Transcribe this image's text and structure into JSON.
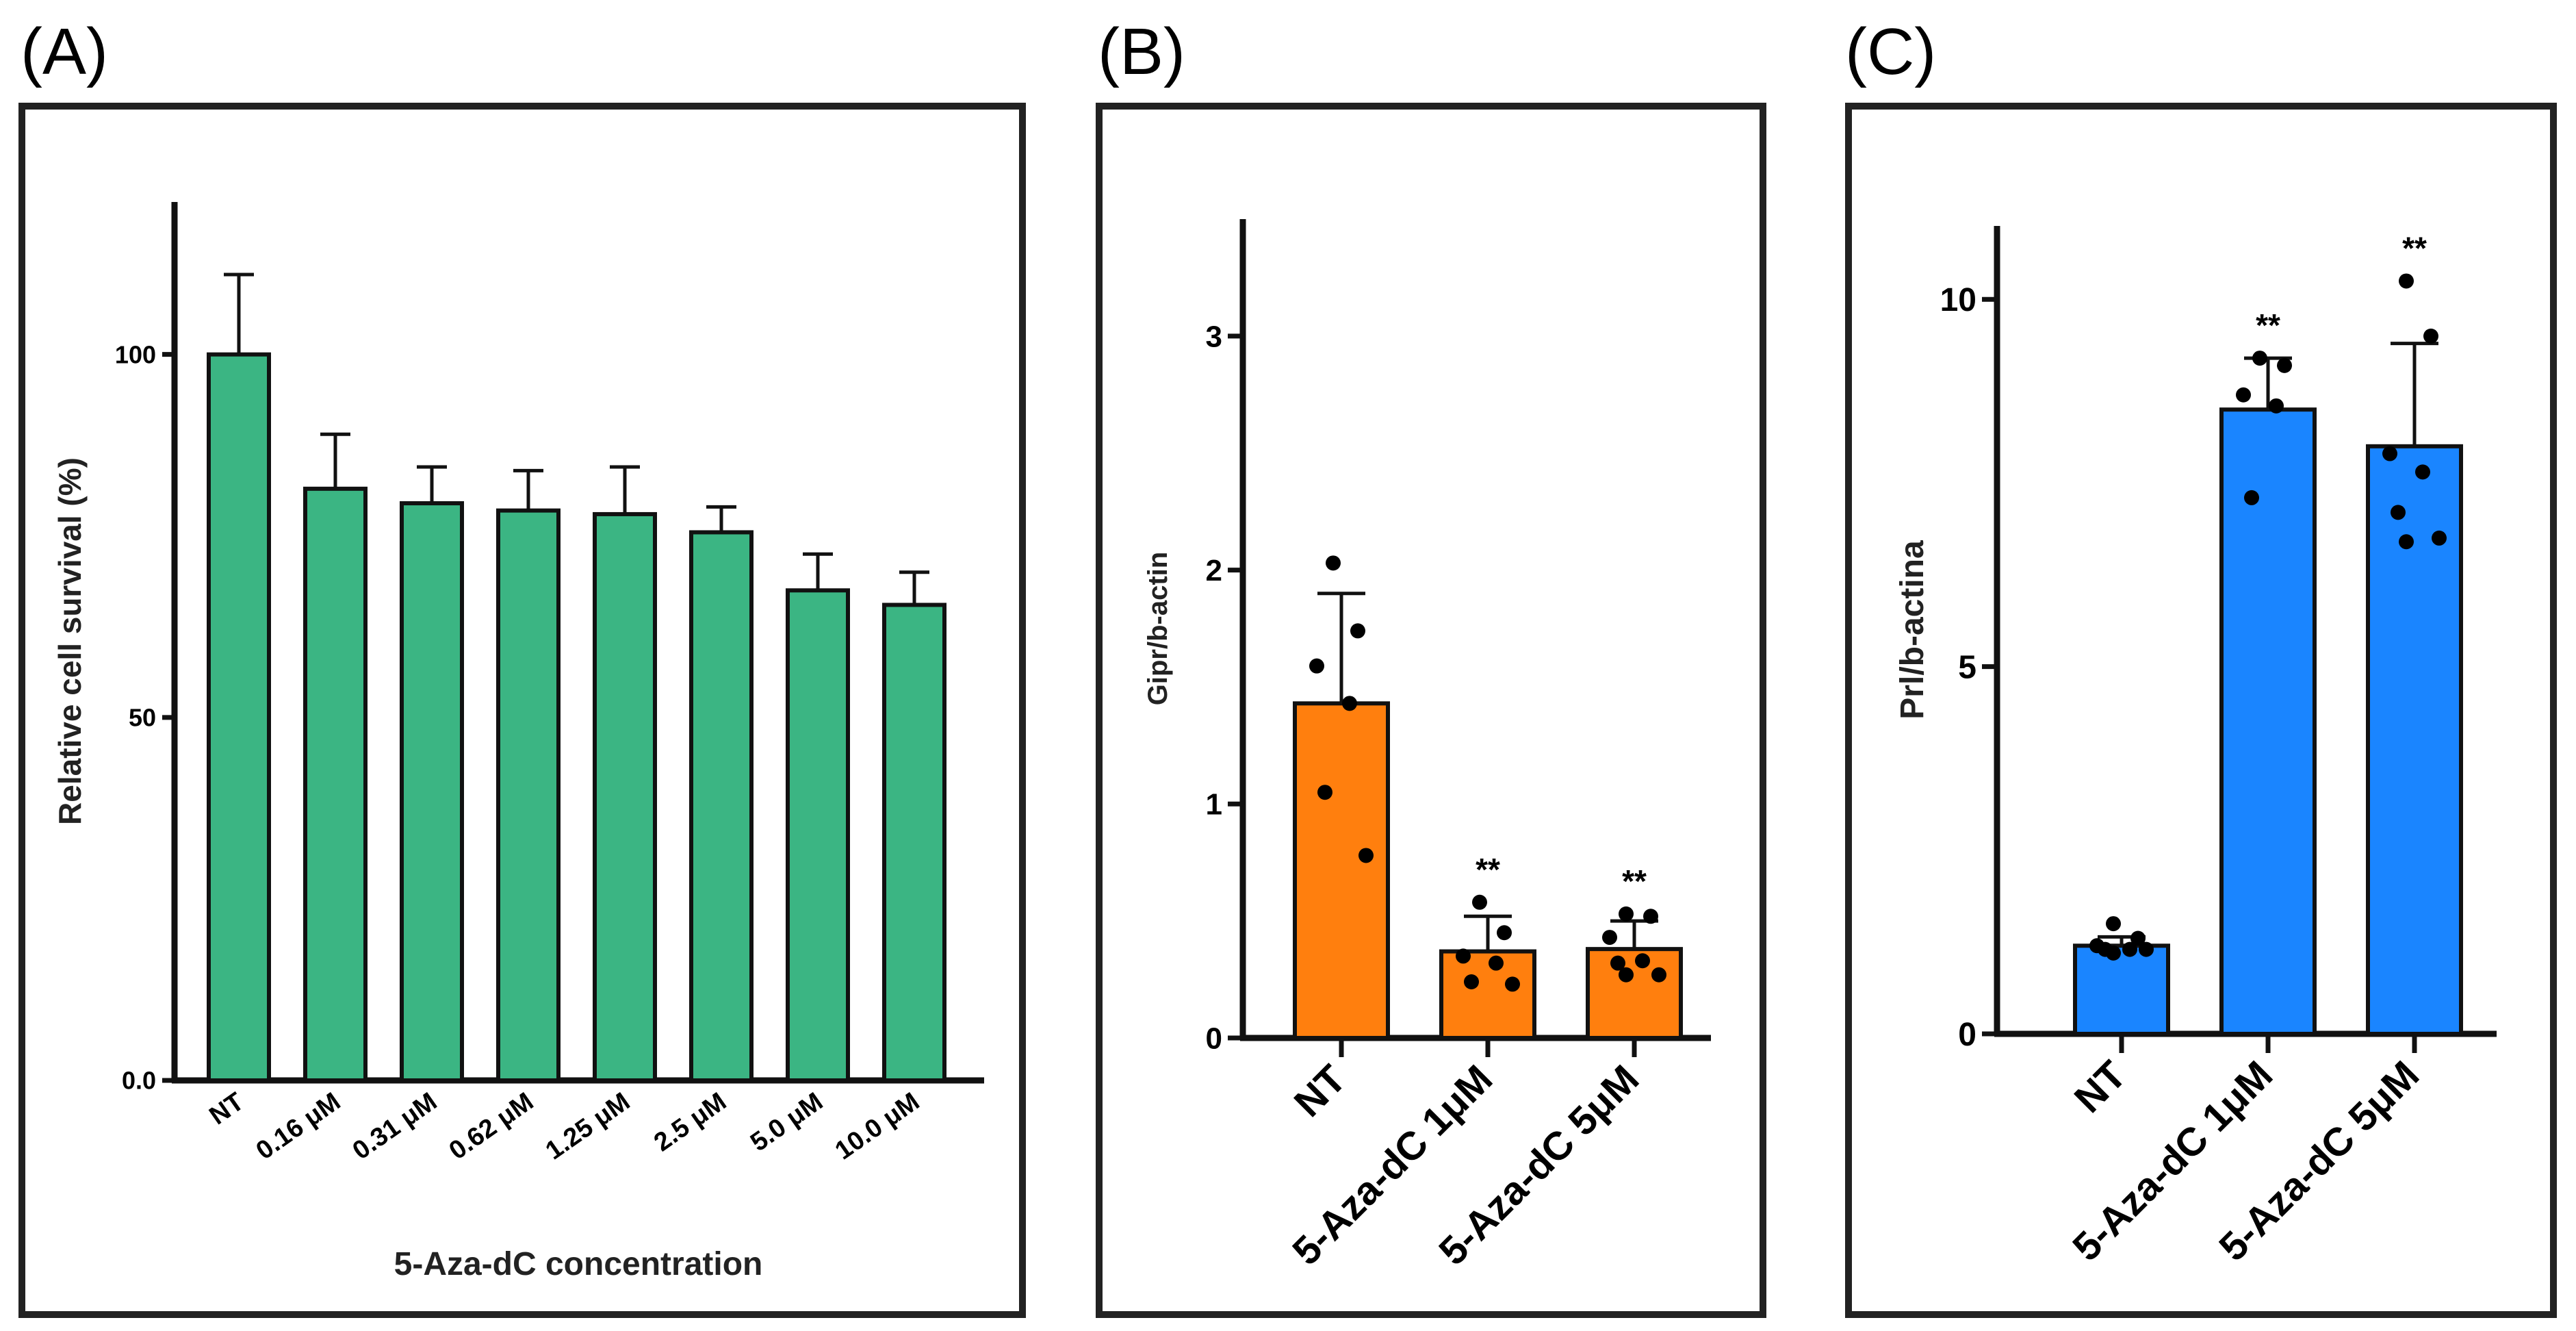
{
  "chart_data": [
    {
      "panel_label": "(A)",
      "type": "bar",
      "categories": [
        "NT",
        "0.16 μM",
        "0.31 μM",
        "0.62 μM",
        "1.25 μM",
        "2.5 μM",
        "5.0 μM",
        "10.0 μM"
      ],
      "values": [
        100,
        81.5,
        79.5,
        78.5,
        78,
        75.5,
        67.5,
        65.5
      ],
      "errors": [
        11,
        7.5,
        5,
        5.5,
        6.5,
        3.5,
        5,
        4.5
      ],
      "ylabel": "Relative cell survival (%)",
      "xlabel": "5-Aza-dC concentration",
      "ylim": [
        0,
        121
      ],
      "yticks": [
        {
          "v": 0,
          "label": "0.0"
        },
        {
          "v": 50,
          "label": "50"
        },
        {
          "v": 100,
          "label": "100"
        }
      ],
      "bar_color": "#3bb583",
      "grid": false
    },
    {
      "panel_label": "(B)",
      "type": "bar",
      "categories": [
        "NT",
        "5-Aza-dC  1μM",
        "5-Aza-dC  5μM"
      ],
      "values": [
        1.43,
        0.37,
        0.38
      ],
      "errors": [
        0.47,
        0.15,
        0.12
      ],
      "points": [
        [
          2.03,
          1.74,
          1.59,
          1.43,
          1.05,
          0.78
        ],
        [
          0.58,
          0.45,
          0.35,
          0.32,
          0.24,
          0.23
        ],
        [
          0.53,
          0.52,
          0.43,
          0.33,
          0.32,
          0.27,
          0.27
        ]
      ],
      "significance": [
        "",
        "**",
        "**"
      ],
      "ylabel": "Gipr/b-actin",
      "ylim": [
        0,
        3.5
      ],
      "yticks": [
        {
          "v": 0,
          "label": "0"
        },
        {
          "v": 1,
          "label": "1"
        },
        {
          "v": 2,
          "label": "2"
        },
        {
          "v": 3,
          "label": "3"
        }
      ],
      "bar_color": "#ff7f0e",
      "grid": false
    },
    {
      "panel_label": "(C)",
      "type": "bar",
      "categories": [
        "NT",
        "5-Aza-dC  1μM",
        "5-Aza-dC  5μM"
      ],
      "values": [
        1.2,
        8.5,
        8.0
      ],
      "errors": [
        0.12,
        0.7,
        1.4
      ],
      "points": [
        [
          1.5,
          1.3,
          1.2,
          1.15,
          1.15,
          1.15,
          1.1
        ],
        [
          9.2,
          9.1,
          8.7,
          8.55,
          7.3
        ],
        [
          10.25,
          9.5,
          7.9,
          7.65,
          7.1,
          6.75,
          6.7
        ]
      ],
      "significance": [
        "",
        "**",
        "**"
      ],
      "ylabel": "Prl/b-actina",
      "ylim": [
        0,
        11
      ],
      "yticks": [
        {
          "v": 0,
          "label": "0"
        },
        {
          "v": 5,
          "label": "5"
        },
        {
          "v": 10,
          "label": "10"
        }
      ],
      "bar_color": "#1a85ff",
      "grid": false
    }
  ]
}
